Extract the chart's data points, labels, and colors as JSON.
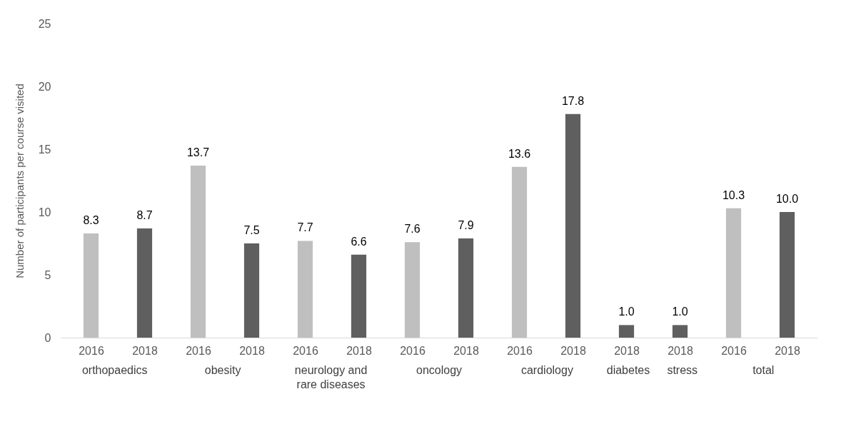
{
  "chart_data": {
    "type": "bar",
    "ylabel": "Number of participants per course visited",
    "categories": [
      "2016",
      "2018",
      "2016",
      "2018",
      "2016",
      "2018",
      "2016",
      "2018",
      "2016",
      "2018",
      "2018",
      "2018",
      "2016",
      "2018"
    ],
    "values": [
      8.3,
      8.7,
      13.7,
      7.5,
      7.7,
      6.6,
      7.6,
      7.9,
      13.6,
      17.8,
      1.0,
      1.0,
      10.3,
      10.0
    ],
    "colors": [
      "#bfbfbf",
      "#5f5f5f",
      "#bfbfbf",
      "#5f5f5f",
      "#bfbfbf",
      "#5f5f5f",
      "#bfbfbf",
      "#5f5f5f",
      "#bfbfbf",
      "#5f5f5f",
      "#5f5f5f",
      "#5f5f5f",
      "#bfbfbf",
      "#5f5f5f"
    ],
    "value_labels": [
      "8.3",
      "8.7",
      "13.7",
      "7.5",
      "7.7",
      "6.6",
      "7.6",
      "7.9",
      "13.6",
      "17.8",
      "1.0",
      "1.0",
      "10.3",
      "10.0"
    ],
    "annotations": [
      "orthopaedics",
      "obesity",
      "neurology and rare diseases",
      "oncology",
      "cardiology",
      "diabetes",
      "stress",
      "total"
    ],
    "ylim": [
      0,
      25
    ],
    "yticks": [
      0,
      5,
      10,
      15,
      20,
      25
    ],
    "grid": false
  }
}
